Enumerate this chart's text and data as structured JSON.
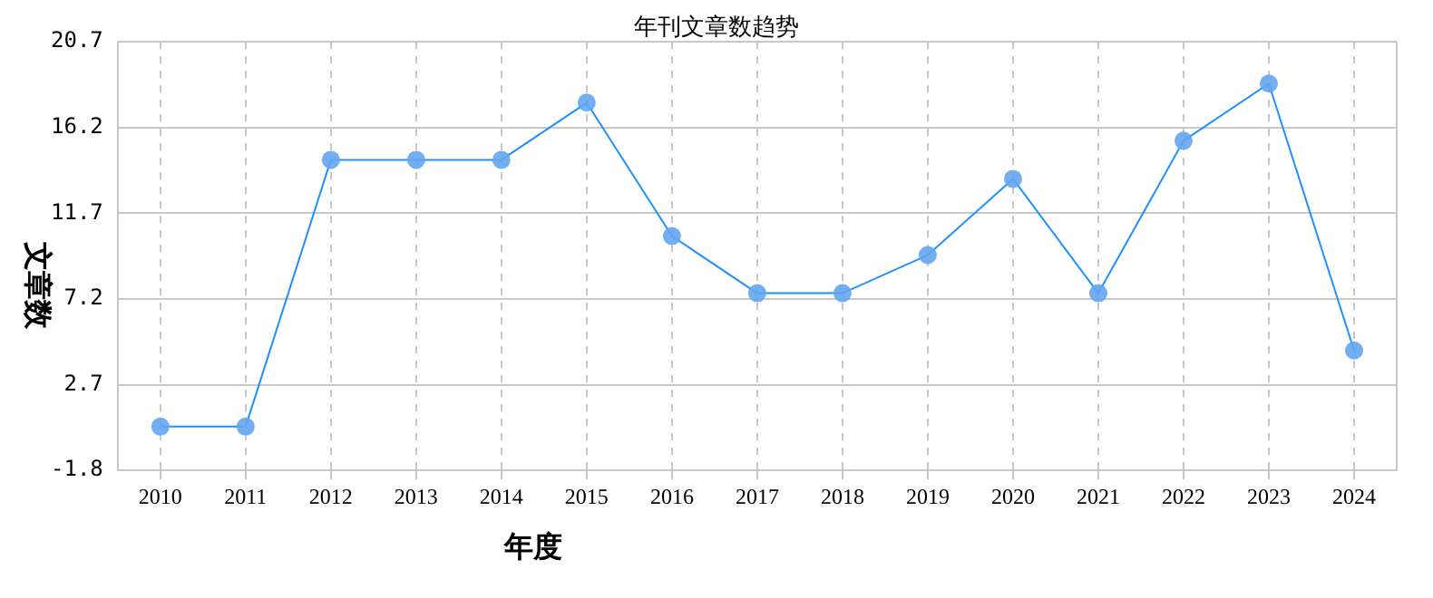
{
  "chart_data": {
    "type": "line",
    "title": "年刊文章数趋势",
    "xlabel": "年度",
    "ylabel": "文章数",
    "categories": [
      "2010",
      "2011",
      "2012",
      "2013",
      "2014",
      "2015",
      "2016",
      "2017",
      "2018",
      "2019",
      "2020",
      "2021",
      "2022",
      "2023",
      "2024"
    ],
    "series": [
      {
        "color": "#1e90ff",
        "values": [
          0.5,
          0.5,
          14.5,
          14.5,
          14.5,
          17.5,
          10.5,
          7.5,
          7.5,
          9.5,
          13.5,
          7.5,
          15.5,
          18.5,
          4.5
        ]
      }
    ],
    "ylim": [
      -1.8,
      20.7
    ],
    "yticks": [
      -1.8,
      2.7,
      7.2,
      11.7,
      16.2,
      20.7
    ],
    "grid": true,
    "marker": "circle",
    "legend": false
  }
}
